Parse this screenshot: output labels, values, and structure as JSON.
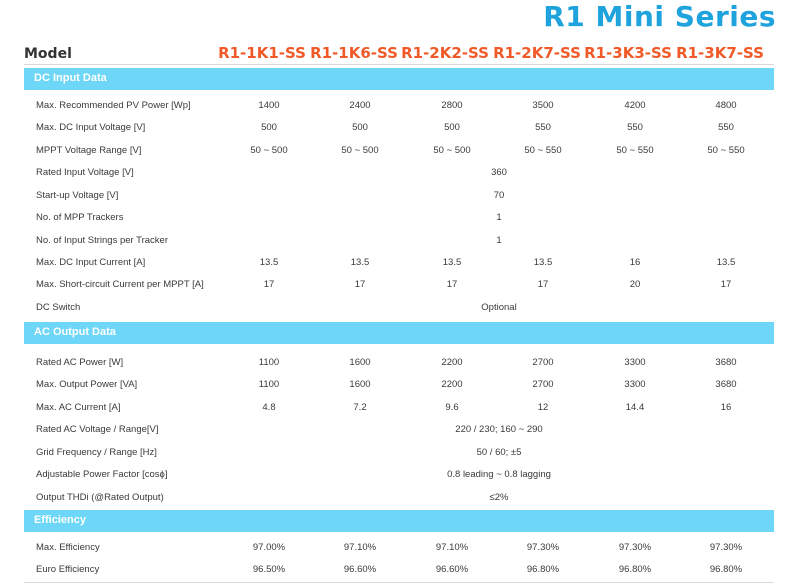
{
  "series_title": "R1 Mini Series",
  "header": {
    "model_label": "Model",
    "models": [
      "R1-1K1-SS",
      "R1-1K6-SS",
      "R1-2K2-SS",
      "R1-2K7-SS",
      "R1-3K3-SS",
      "R1-3K7-SS"
    ]
  },
  "sections": {
    "dc_input": {
      "title": "DC Input Data",
      "rows": {
        "max_pv_power": {
          "label": "Max. Recommended PV Power [Wp]",
          "values": [
            "1400",
            "2400",
            "2800",
            "3500",
            "4200",
            "4800"
          ]
        },
        "max_dc_voltage": {
          "label": "Max. DC Input Voltage [V]",
          "values": [
            "500",
            "500",
            "500",
            "550",
            "550",
            "550"
          ]
        },
        "mppt_range": {
          "label": "MPPT Voltage Range [V]",
          "values": [
            "50 ~ 500",
            "50 ~ 500",
            "50 ~ 500",
            "50 ~ 550",
            "50 ~ 550",
            "50 ~ 550"
          ]
        },
        "rated_input_voltage": {
          "label": "Rated Input Voltage [V]",
          "value": "360"
        },
        "startup_voltage": {
          "label": "Start-up Voltage [V]",
          "value": "70"
        },
        "mpp_trackers": {
          "label": "No. of MPP Trackers",
          "value": "1"
        },
        "input_strings": {
          "label": "No. of Input Strings per Tracker",
          "value": "1"
        },
        "max_dc_current": {
          "label": "Max. DC Input Current [A]",
          "values": [
            "13.5",
            "13.5",
            "13.5",
            "13.5",
            "16",
            "13.5"
          ]
        },
        "max_sc_current": {
          "label": "Max. Short-circuit Current per MPPT [A]",
          "values": [
            "17",
            "17",
            "17",
            "17",
            "20",
            "17"
          ]
        },
        "dc_switch": {
          "label": "DC Switch",
          "value": "Optional"
        }
      }
    },
    "ac_output": {
      "title": "AC Output Data",
      "rows": {
        "rated_ac_power": {
          "label": "Rated AC Power [W]",
          "values": [
            "1100",
            "1600",
            "2200",
            "2700",
            "3300",
            "3680"
          ]
        },
        "max_output_power": {
          "label": "Max. Output Power [VA]",
          "values": [
            "1100",
            "1600",
            "2200",
            "2700",
            "3300",
            "3680"
          ]
        },
        "max_ac_current": {
          "label": "Max. AC Current [A]",
          "values": [
            "4.8",
            "7.2",
            "9.6",
            "12",
            "14.4",
            "16"
          ]
        },
        "rated_ac_voltage": {
          "label": "Rated AC Voltage / Range[V]",
          "value": "220 / 230; 160 ~ 290"
        },
        "grid_frequency": {
          "label": "Grid Frequency / Range [Hz]",
          "value": "50 / 60; ±5"
        },
        "power_factor": {
          "label": "Adjustable Power Factor [cosϕ]",
          "value": "0.8 leading ~ 0.8 lagging"
        },
        "output_thdi": {
          "label": "Output THDi (@Rated Output)",
          "value": "≤2%"
        }
      }
    },
    "efficiency": {
      "title": "Efficiency",
      "rows": {
        "max_efficiency": {
          "label": "Max. Efficiency",
          "values": [
            "97.00%",
            "97.10%",
            "97.10%",
            "97.30%",
            "97.30%",
            "97.30%"
          ]
        },
        "euro_efficiency": {
          "label": "Euro Efficiency",
          "values": [
            "96.50%",
            "96.60%",
            "96.60%",
            "96.80%",
            "96.80%",
            "96.80%"
          ]
        }
      }
    }
  }
}
